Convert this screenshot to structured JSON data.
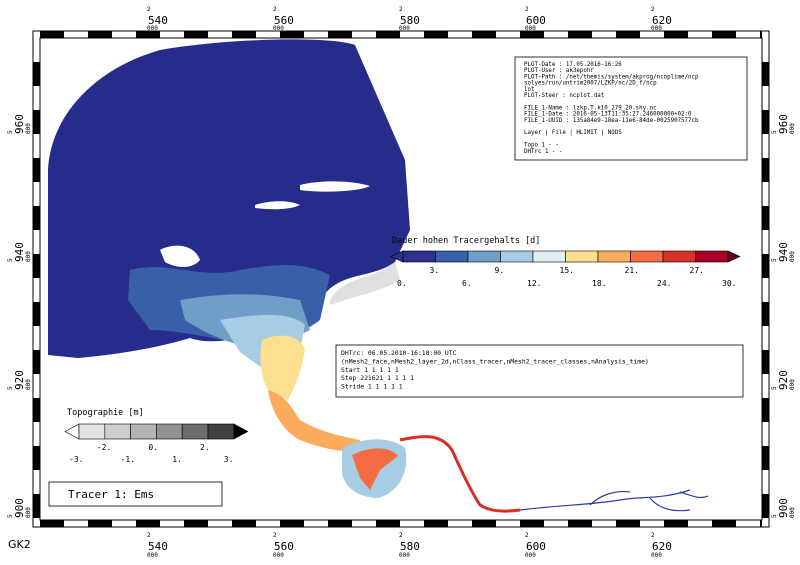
{
  "map": {
    "crs_label": "GK2",
    "x_ticks": [
      {
        "top": "2",
        "main": "540",
        "sub": "000"
      },
      {
        "top": "2",
        "main": "560",
        "sub": "000"
      },
      {
        "top": "2",
        "main": "580",
        "sub": "000"
      },
      {
        "top": "2",
        "main": "600",
        "sub": "000"
      },
      {
        "top": "2",
        "main": "620",
        "sub": "000"
      }
    ],
    "y_ticks": [
      {
        "top": "5",
        "main": "960",
        "sub": "000"
      },
      {
        "top": "5",
        "main": "940",
        "sub": "000"
      },
      {
        "top": "5",
        "main": "920",
        "sub": "000"
      },
      {
        "top": "5",
        "main": "900",
        "sub": "000"
      }
    ],
    "colors": {
      "land_deep": "#262c8c",
      "land_light": "#e6e6e6",
      "river": "#2b3c9e",
      "accent_red": "#d73027"
    }
  },
  "info_box": {
    "lines": [
      "PLOT-Date  :  17.05.2016-16:26",
      "PLOT-User  :  ak3epohr",
      "PLOT-Path  :  /net/themis/system/akprog/ncoplime/ncp",
      "              solyes/run/untrim2007/LZKP/nc/2D_f/ncp",
      "              lot",
      "PLOT-Steer :  ncplot.dat",
      "",
      "FILE_1-Name  :  lzkp.T.k10_279_20.shy.nc",
      "FILE_1-Date  :  2016-05-13T11:35:27.246000000+02:0",
      "FILE_1-UUID  :  135a84e9-18ea-11e6-84de-0025907577cb",
      "",
      "Layer  |  File  |  HLIMIT  |  NODS",
      "",
      "Topo      1        -         -",
      "DHTrc     1        -         -"
    ]
  },
  "legend_tracer": {
    "title": "Dauer hohen Tracergehalts [d]",
    "labels_top": [
      "3.",
      "9.",
      "15.",
      "21.",
      "27."
    ],
    "labels_bottom": [
      "0.",
      "6.",
      "12.",
      "18.",
      "24.",
      "30."
    ],
    "colors": [
      "#2c3190",
      "#3a5fa9",
      "#6f9ec9",
      "#a6cde3",
      "#e1f0f5",
      "#fde08f",
      "#fcaa5c",
      "#f36c43",
      "#d63228",
      "#a50026"
    ]
  },
  "legend_topo": {
    "title": "Topographie [m]",
    "labels_bottom": [
      "-3.",
      "-1.",
      "1.",
      "3."
    ],
    "labels_top": [
      "-2.",
      "0.",
      "2."
    ],
    "colors": [
      "#f4f4f4",
      "#e2e2e2",
      "#cecece",
      "#b4b4b4",
      "#939393",
      "#6d6d6d",
      "#404040",
      "#111111"
    ]
  },
  "data_box": {
    "lines": [
      "DHTrc: 06.05.2010-16:18:00 UTC",
      "(nMesh2_face,nMesh2_layer_2d,nClass_tracer,nMesh2_tracer_classes,nAnalysis_time)",
      "Start       1      1      1      1      1",
      "Step   221621      1      1      1      1",
      "Stride      1      1      1      1      1"
    ]
  },
  "tracer_label": "Tracer 1: Ems"
}
